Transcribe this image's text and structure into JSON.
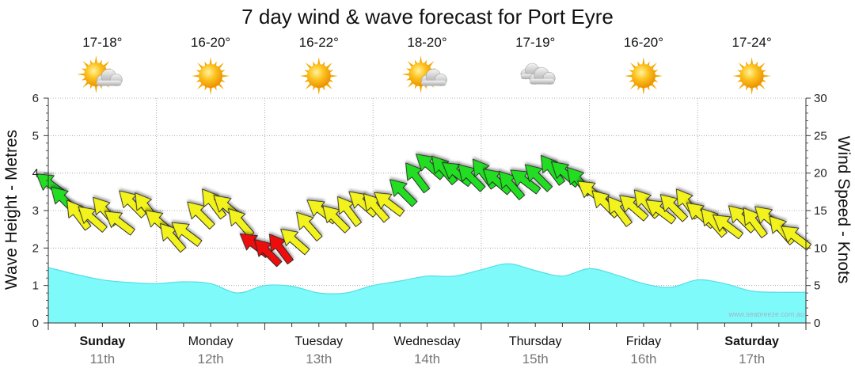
{
  "chart_data": {
    "type": "area",
    "title": "7 day wind & wave forecast for Port Eyre",
    "ylabel_left": "Wave Height - Metres",
    "ylabel_right": "Wind Speed - Knots",
    "ylim_left": [
      0,
      6
    ],
    "ylim_right": [
      0,
      30
    ],
    "yticks_left": [
      "0",
      "1",
      "2",
      "3",
      "4",
      "5",
      "6"
    ],
    "yticks_right": [
      "0",
      "5",
      "10",
      "15",
      "20",
      "25",
      "30"
    ],
    "credit": "www.seabreeze.com.au",
    "days": [
      {
        "name": "Sunday",
        "date": "11th",
        "temp": "17-18°",
        "weather": "partly-cloudy",
        "bold": true
      },
      {
        "name": "Monday",
        "date": "12th",
        "temp": "16-20°",
        "weather": "sunny",
        "bold": false
      },
      {
        "name": "Tuesday",
        "date": "13th",
        "temp": "16-22°",
        "weather": "sunny",
        "bold": false
      },
      {
        "name": "Wednesday",
        "date": "14th",
        "temp": "18-20°",
        "weather": "partly-cloudy",
        "bold": false
      },
      {
        "name": "Thursday",
        "date": "15th",
        "temp": "17-19°",
        "weather": "cloudy",
        "bold": false
      },
      {
        "name": "Friday",
        "date": "16th",
        "temp": "16-20°",
        "weather": "sunny",
        "bold": false
      },
      {
        "name": "Saturday",
        "date": "17th",
        "temp": "17-24°",
        "weather": "sunny",
        "bold": true
      }
    ],
    "wave_series": {
      "name": "Wave Height (m)",
      "x_days": [
        0,
        0.25,
        0.5,
        0.75,
        1,
        1.25,
        1.5,
        1.75,
        2,
        2.25,
        2.5,
        2.75,
        3,
        3.25,
        3.5,
        3.75,
        4,
        4.25,
        4.5,
        4.75,
        5,
        5.25,
        5.5,
        5.75,
        6,
        6.25,
        6.5,
        6.75,
        7
      ],
      "values": [
        1.48,
        1.3,
        1.15,
        1.08,
        1.05,
        1.1,
        1.05,
        0.8,
        1.0,
        0.98,
        0.8,
        0.8,
        1.0,
        1.12,
        1.25,
        1.25,
        1.42,
        1.58,
        1.4,
        1.25,
        1.45,
        1.28,
        1.05,
        0.95,
        1.15,
        1.05,
        0.85,
        0.82,
        0.82
      ]
    },
    "wind_series": {
      "name": "Wind Speed (knots)",
      "x_days": [
        0.02,
        0.14,
        0.27,
        0.4,
        0.52,
        0.65,
        0.77,
        0.9,
        1.02,
        1.14,
        1.27,
        1.4,
        1.52,
        1.65,
        1.77,
        1.9,
        2.02,
        2.14,
        2.27,
        2.4,
        2.52,
        2.65,
        2.77,
        2.9,
        3.02,
        3.14,
        3.27,
        3.4,
        3.52,
        3.65,
        3.77,
        3.9,
        4.02,
        4.14,
        4.27,
        4.4,
        4.52,
        4.65,
        4.77,
        4.9,
        5.02,
        5.14,
        5.27,
        5.4,
        5.52,
        5.65,
        5.77,
        5.9,
        6.02,
        6.14,
        6.27,
        6.4,
        6.52,
        6.65,
        6.77,
        6.9
      ],
      "values": [
        18.5,
        16.5,
        14.5,
        14.0,
        15.0,
        13.5,
        16.0,
        15.5,
        13.5,
        11.5,
        12.0,
        14.5,
        16.0,
        15.5,
        13.5,
        10.5,
        9.5,
        10.0,
        11.0,
        13.0,
        15.0,
        14.0,
        15.0,
        16.0,
        15.5,
        16.0,
        17.5,
        19.5,
        21.0,
        20.5,
        20.0,
        19.5,
        20.0,
        19.0,
        18.5,
        19.0,
        19.5,
        20.5,
        20.0,
        19.0,
        17.5,
        16.0,
        15.0,
        15.5,
        16.0,
        15.0,
        15.5,
        16.0,
        14.5,
        13.5,
        13.0,
        14.0,
        13.5,
        14.0,
        12.5,
        11.5
      ],
      "category": [
        "green",
        "green",
        "yellow",
        "yellow",
        "yellow",
        "yellow",
        "yellow",
        "yellow",
        "yellow",
        "yellow",
        "yellow",
        "yellow",
        "yellow",
        "yellow",
        "yellow",
        "red",
        "red",
        "red",
        "yellow",
        "yellow",
        "yellow",
        "yellow",
        "yellow",
        "yellow",
        "yellow",
        "yellow",
        "green",
        "green",
        "green",
        "green",
        "green",
        "green",
        "green",
        "green",
        "green",
        "green",
        "green",
        "green",
        "green",
        "green",
        "yellow",
        "yellow",
        "yellow",
        "yellow",
        "yellow",
        "yellow",
        "yellow",
        "yellow",
        "yellow",
        "yellow",
        "yellow",
        "yellow",
        "yellow",
        "yellow",
        "yellow",
        "yellow"
      ]
    }
  },
  "colors": {
    "wave_fill": "#7ffafa",
    "wave_line": "#55dde6",
    "green": "#22dd22",
    "yellow": "#f2f21a",
    "red": "#ee1111",
    "grid": "#999999",
    "sun": "#f5a800",
    "cloud": "#c9c9c9"
  }
}
